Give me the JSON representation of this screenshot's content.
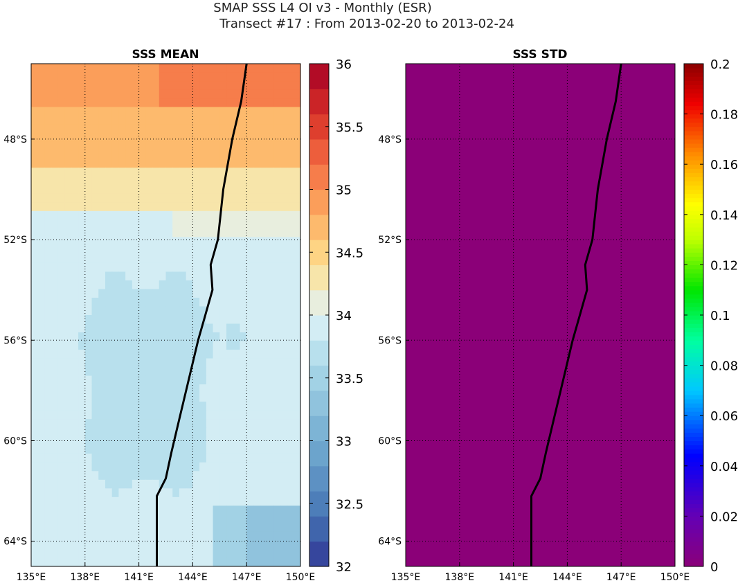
{
  "title": {
    "line1": "SMAP SSS L4 OI v3 - Monthly (ESR)",
    "line2": "Transect #17 : From 2013-02-20 to 2013-02-24"
  },
  "chart_data": [
    {
      "type": "heatmap",
      "title": "SSS MEAN",
      "x_unit": "°E",
      "y_unit": "°S",
      "xlim": [
        135,
        150
      ],
      "ylim": [
        -45.0,
        -65.0
      ],
      "xticks": [
        135,
        138,
        141,
        144,
        147,
        150
      ],
      "xtick_labels": [
        "135°E",
        "138°E",
        "141°E",
        "144°E",
        "147°E",
        "150°E"
      ],
      "yticks": [
        -48,
        -52,
        -56,
        -60,
        -64
      ],
      "ytick_labels": [
        "48°S",
        "52°S",
        "56°S",
        "60°S",
        "64°S"
      ],
      "colorbar": {
        "range": [
          32,
          36
        ],
        "ticks": [
          32,
          32.5,
          33,
          33.5,
          34,
          34.5,
          35,
          35.5,
          36
        ],
        "tick_labels": [
          "32",
          "32.5",
          "33",
          "33.5",
          "34",
          "34.5",
          "35",
          "35.5",
          "36"
        ],
        "colormap": "RdYlBu_r",
        "levels": 20
      },
      "grid": true,
      "field_description_values": {
        "north_max": 35.1,
        "band_48S": 34.6,
        "band_50S": 34.3,
        "band_51S": 34.0,
        "south_bulk": 33.9,
        "interior_patch": 33.7,
        "se_corner_min": 33.3
      },
      "transect_track": {
        "lon": [
          147.0,
          146.7,
          146.2,
          145.7,
          145.4,
          145.0,
          145.1,
          144.7,
          144.3,
          143.8,
          143.3,
          142.8,
          142.5,
          142.0,
          142.0,
          142.0
        ],
        "lat": [
          -45.0,
          -46.5,
          -48.0,
          -50.0,
          -52.0,
          -53.0,
          -54.0,
          -55.0,
          -56.0,
          -57.5,
          -59.0,
          -60.5,
          -61.5,
          -62.2,
          -63.5,
          -65.0
        ]
      }
    },
    {
      "type": "heatmap",
      "title": "SSS STD",
      "x_unit": "°E",
      "y_unit": "°S",
      "xlim": [
        135,
        150
      ],
      "ylim": [
        -45.0,
        -65.0
      ],
      "xticks": [
        135,
        138,
        141,
        144,
        147,
        150
      ],
      "xtick_labels": [
        "135°E",
        "138°E",
        "141°E",
        "144°E",
        "147°E",
        "150°E"
      ],
      "yticks": [
        -48,
        -52,
        -56,
        -60,
        -64
      ],
      "ytick_labels": [
        "48°S",
        "52°S",
        "56°S",
        "60°S",
        "64°S"
      ],
      "colorbar": {
        "range": [
          0,
          0.2
        ],
        "ticks": [
          0,
          0.02,
          0.04,
          0.06,
          0.08,
          0.1,
          0.12,
          0.14,
          0.16,
          0.18,
          0.2
        ],
        "tick_labels": [
          "0",
          "0.02",
          "0.04",
          "0.06",
          "0.08",
          "0.1",
          "0.12",
          "0.14",
          "0.16",
          "0.18",
          "0.2"
        ],
        "colormap": "spectral"
      },
      "grid": true,
      "field_value": 0,
      "field_color": "#8b0078",
      "transect_track": {
        "lon": [
          147.0,
          146.7,
          146.2,
          145.7,
          145.4,
          145.0,
          145.1,
          144.7,
          144.3,
          143.8,
          143.3,
          142.8,
          142.5,
          142.0,
          142.0,
          142.0
        ],
        "lat": [
          -45.0,
          -46.5,
          -48.0,
          -50.0,
          -52.0,
          -53.0,
          -54.0,
          -55.0,
          -56.0,
          -57.5,
          -59.0,
          -60.5,
          -61.5,
          -62.2,
          -63.5,
          -65.0
        ]
      }
    }
  ]
}
